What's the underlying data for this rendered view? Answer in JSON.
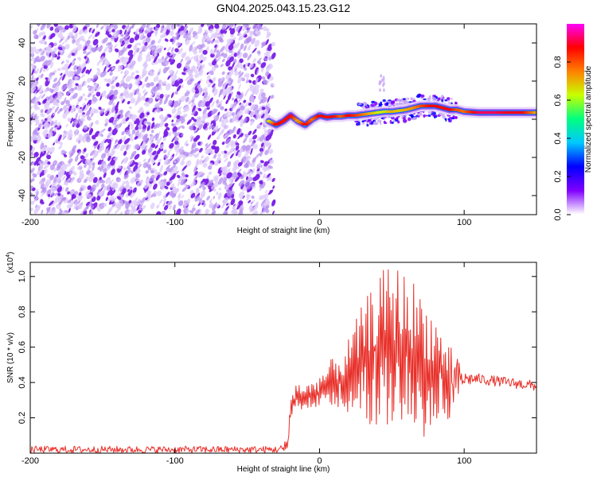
{
  "title": "GN04.2025.043.15.23.G12",
  "chart_data": [
    {
      "type": "heatmap",
      "xlabel": "Height of straight line (km)",
      "ylabel": "Frequency (Hz)",
      "xlim": [
        -200,
        150
      ],
      "ylim": [
        -50,
        50
      ],
      "xticks": [
        -200,
        -100,
        0,
        100
      ],
      "yticks": [
        -40,
        -20,
        0,
        20,
        40
      ],
      "colorbar": {
        "label": "Normalized spectral amplitude",
        "range": [
          0.0,
          1.0
        ],
        "ticks": [
          0.0,
          0.2,
          0.4,
          0.6,
          0.8
        ],
        "colors": [
          "#ffffff",
          "#7f00ff",
          "#0000ff",
          "#00c8ff",
          "#00ff80",
          "#c8ff00",
          "#ff8000",
          "#ff0000",
          "#ff00ff"
        ]
      },
      "noise_region_x": [
        -200,
        -35
      ],
      "signal_track": {
        "x": [
          -35,
          -30,
          -25,
          -20,
          -15,
          -10,
          -5,
          0,
          5,
          10,
          15,
          20,
          25,
          30,
          35,
          40,
          45,
          50,
          55,
          60,
          65,
          70,
          75,
          80,
          85,
          90,
          95,
          100,
          110,
          120,
          130,
          140,
          150
        ],
        "frequency": [
          -1,
          -3,
          -1,
          2,
          -1,
          -3,
          0,
          2,
          1,
          1.5,
          1.5,
          2,
          2,
          2.5,
          3,
          3.5,
          4,
          4,
          4.5,
          5,
          6,
          7,
          7,
          7,
          6,
          5,
          5,
          4,
          3.5,
          3.5,
          3.5,
          3.5,
          3.5
        ],
        "peak_amplitude": [
          0.5,
          0.9,
          0.85,
          0.9,
          0.6,
          0.9,
          0.7,
          0.9,
          0.85,
          0.9,
          0.7,
          0.9,
          0.8,
          0.7,
          0.6,
          0.5,
          0.5,
          0.6,
          0.55,
          0.6,
          0.65,
          0.75,
          0.85,
          0.9,
          0.85,
          0.9,
          0.75,
          0.7,
          0.95,
          0.95,
          0.9,
          0.9,
          0.6
        ]
      }
    },
    {
      "type": "line",
      "xlabel": "Height of straight line (km)",
      "ylabel": "SNR (10 * v/v)",
      "y_multiplier": "(x10^4)",
      "xlim": [
        -200,
        150
      ],
      "ylim": [
        0.0,
        1.08
      ],
      "xticks": [
        -200,
        -100,
        0,
        100
      ],
      "yticks": [
        0.2,
        0.4,
        0.6,
        0.8,
        1.0
      ],
      "series": [
        {
          "color": "#e8302a",
          "x": [
            -200,
            -150,
            -100,
            -60,
            -30,
            -25,
            -22,
            -20,
            -18,
            -15,
            -10,
            -5,
            0,
            5,
            10,
            15,
            20,
            25,
            30,
            35,
            40,
            45,
            50,
            55,
            60,
            65,
            70,
            75,
            80,
            85,
            90,
            95,
            100,
            110,
            120,
            130,
            140,
            150
          ],
          "y": [
            0.02,
            0.02,
            0.02,
            0.02,
            0.02,
            0.02,
            0.05,
            0.25,
            0.28,
            0.33,
            0.3,
            0.33,
            0.35,
            0.38,
            0.42,
            0.4,
            0.45,
            0.48,
            0.52,
            0.58,
            0.6,
            0.62,
            0.62,
            0.62,
            0.6,
            0.58,
            0.55,
            0.52,
            0.48,
            0.45,
            0.42,
            0.42,
            0.42,
            0.42,
            0.41,
            0.4,
            0.39,
            0.38
          ],
          "envelope_low": [
            0.0,
            0.0,
            0.0,
            0.0,
            0.0,
            0.0,
            0.01,
            0.2,
            0.22,
            0.25,
            0.22,
            0.25,
            0.27,
            0.26,
            0.28,
            0.24,
            0.22,
            0.18,
            0.14,
            0.12,
            0.1,
            0.08,
            0.06,
            0.05,
            0.05,
            0.06,
            0.08,
            0.1,
            0.12,
            0.15,
            0.2,
            0.25,
            0.38,
            0.39,
            0.38,
            0.37,
            0.36,
            0.35
          ],
          "envelope_high": [
            0.04,
            0.04,
            0.04,
            0.04,
            0.04,
            0.05,
            0.1,
            0.35,
            0.38,
            0.42,
            0.38,
            0.42,
            0.45,
            0.5,
            0.55,
            0.58,
            0.65,
            0.75,
            0.85,
            0.92,
            0.98,
            1.05,
            1.07,
            1.06,
            1.02,
            0.98,
            0.92,
            0.85,
            0.78,
            0.7,
            0.62,
            0.55,
            0.46,
            0.45,
            0.44,
            0.43,
            0.42,
            0.41
          ]
        }
      ]
    }
  ]
}
